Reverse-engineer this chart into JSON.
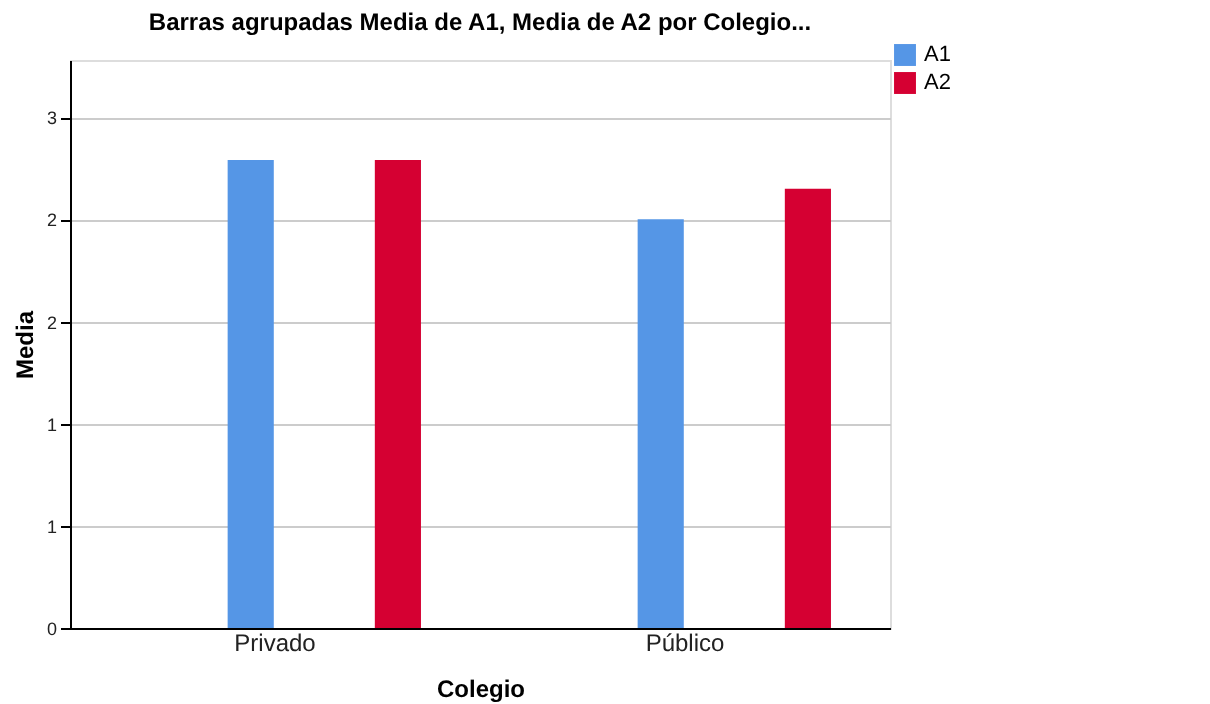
{
  "chart_data": {
    "type": "bar",
    "title": "Barras agrupadas Media de A1, Media de A2 por Colegio...",
    "xlabel": "Colegio",
    "ylabel": "Media",
    "categories": [
      "Privado",
      "Público"
    ],
    "series": [
      {
        "name": "A1",
        "color": "#5596e6",
        "values": [
          2.29,
          2.0
        ]
      },
      {
        "name": "A2",
        "color": "#d50032",
        "values": [
          2.29,
          2.15
        ]
      }
    ],
    "ylim": [
      0,
      2.78
    ],
    "yticks": [
      0,
      {
        "value": 0.5,
        "label": "1"
      },
      {
        "value": 1,
        "label": "1"
      },
      {
        "value": 1.5,
        "label": "2"
      },
      {
        "value": 2,
        "label": "2"
      },
      {
        "value": 2.5,
        "label": "3"
      }
    ],
    "grid": "y",
    "legend": "top right"
  }
}
